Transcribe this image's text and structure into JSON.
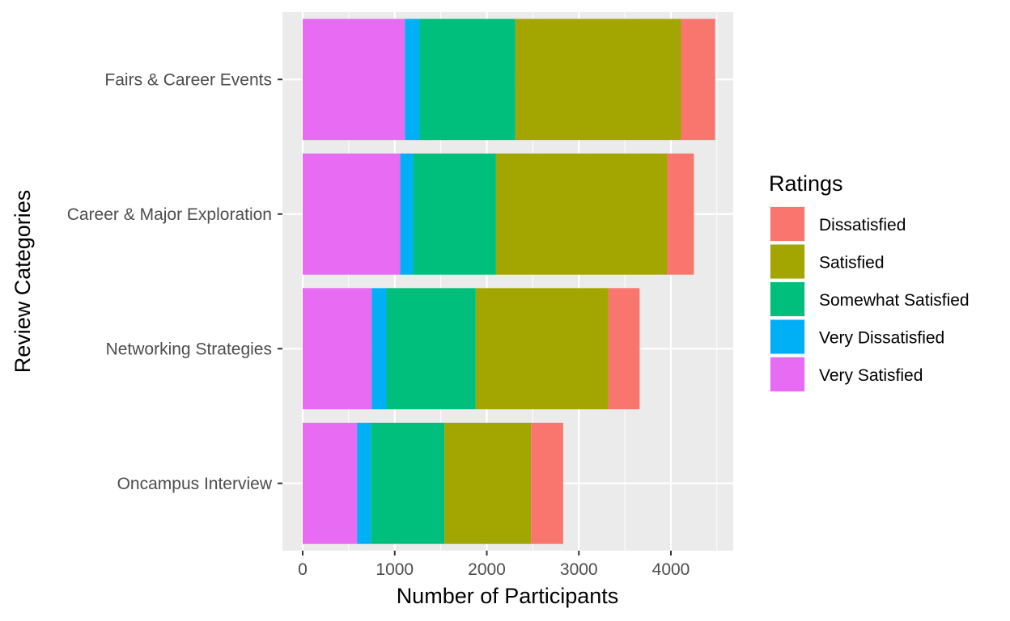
{
  "chart_data": {
    "type": "bar",
    "orientation": "horizontal",
    "stacked": true,
    "xlabel": "Number of Participants",
    "ylabel": "Review Categories",
    "xlim": [
      -200,
      4700
    ],
    "xticks": [
      0,
      1000,
      2000,
      3000,
      4000
    ],
    "grid": true,
    "legend_position": "right",
    "categories": [
      "Fairs & Career Events",
      "Career & Major Exploration",
      "Networking Strategies",
      "Oncampus Interview"
    ],
    "stack_order": [
      "Very Satisfied",
      "Very Dissatisfied",
      "Somewhat Satisfied",
      "Satisfied",
      "Dissatisfied"
    ],
    "series": [
      {
        "name": "Dissatisfied",
        "color": "#F8766D",
        "values": [
          370,
          290,
          340,
          350
        ]
      },
      {
        "name": "Satisfied",
        "color": "#A3A500",
        "values": [
          1800,
          1860,
          1440,
          940
        ]
      },
      {
        "name": "Somewhat Satisfied",
        "color": "#00BF7D",
        "values": [
          1040,
          900,
          970,
          800
        ]
      },
      {
        "name": "Very Dissatisfied",
        "color": "#00B0F6",
        "values": [
          160,
          140,
          160,
          150
        ]
      },
      {
        "name": "Very Satisfied",
        "color": "#E76BF3",
        "values": [
          1110,
          1060,
          750,
          590
        ]
      }
    ]
  },
  "legend": {
    "title": "Ratings"
  },
  "colors": {
    "panel_background": "#EBEBEB",
    "grid": "#FFFFFF",
    "tick_text": "#4D4D4D"
  }
}
